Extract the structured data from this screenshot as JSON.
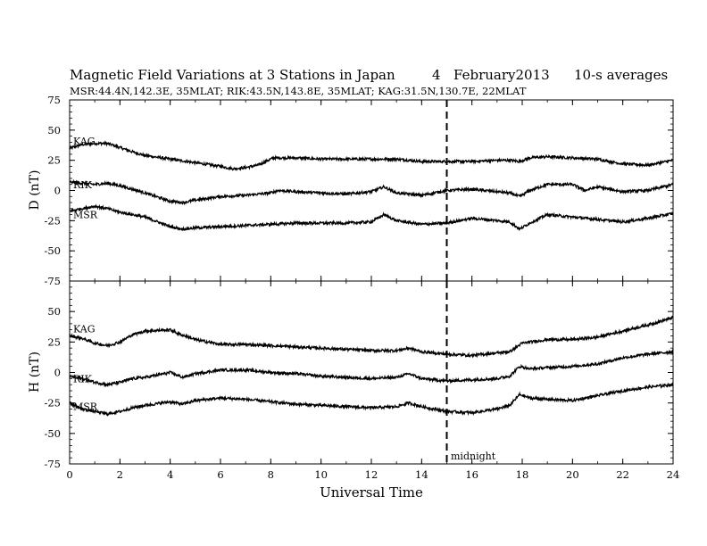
{
  "title": "Magnetic Field Variations at 3 Stations in Japan",
  "date_day": "4",
  "date_month_year": "February2013",
  "averaging": "10-s averages",
  "stations_line": "MSR:44.4N,142.3E, 35MLAT;  RIK:43.5N,143.8E, 35MLAT;  KAG:31.5N,130.7E, 22MLAT",
  "xlabel": "Universal Time",
  "annotation": "midnight",
  "chart_data": [
    {
      "type": "line",
      "panel": "D",
      "ylabel": "D (nT)",
      "ylim": [
        -75,
        75
      ],
      "yticks": [
        75,
        50,
        25,
        0,
        -25,
        -50,
        -75
      ],
      "xlim": [
        0,
        24
      ],
      "xticks": [
        0,
        2,
        4,
        6,
        8,
        10,
        12,
        14,
        16,
        18,
        20,
        22,
        24
      ],
      "vline": {
        "x": 15,
        "style": "dashed"
      },
      "series": [
        {
          "name": "KAG",
          "x": [
            0,
            0.5,
            1,
            1.5,
            1.8,
            2.5,
            3,
            4,
            5,
            6,
            6.5,
            7,
            7.5,
            7.9,
            8.1,
            9,
            10,
            11,
            12,
            12.5,
            13,
            14,
            15,
            16,
            17,
            17.5,
            17.9,
            18.3,
            19,
            20,
            21,
            22,
            23,
            24
          ],
          "y": [
            35,
            38,
            39,
            39,
            37,
            32,
            29,
            26,
            23,
            20,
            18,
            19,
            21,
            25,
            27,
            27,
            26,
            26,
            26,
            26,
            26,
            24,
            24,
            24,
            25,
            25,
            24,
            27,
            28,
            27,
            26,
            22,
            21,
            25
          ]
        },
        {
          "name": "RIK",
          "x": [
            0,
            0.5,
            1,
            1.5,
            2,
            2.5,
            3,
            4,
            4.5,
            5,
            6,
            7,
            8,
            8.3,
            9,
            10,
            11,
            12,
            12.5,
            13,
            14,
            15,
            16,
            17,
            17.5,
            17.9,
            18.3,
            19,
            20,
            20.5,
            21,
            22,
            23,
            24
          ],
          "y": [
            7,
            6,
            5,
            6,
            4,
            1,
            -2,
            -9,
            -10,
            -8,
            -5,
            -4,
            -2,
            0,
            -1,
            -2,
            -3,
            -1,
            3,
            -2,
            -4,
            0,
            1,
            -1,
            -2,
            -5,
            0,
            5,
            5,
            0,
            3,
            -1,
            0,
            5
          ]
        },
        {
          "name": "MSR",
          "x": [
            0,
            0.5,
            1,
            1.5,
            2,
            2.5,
            3,
            4,
            4.5,
            5,
            6,
            7,
            8,
            9,
            10,
            11,
            12,
            12.5,
            13,
            14,
            15,
            16,
            17,
            17.5,
            17.9,
            18.3,
            19,
            20,
            21,
            22,
            23,
            24
          ],
          "y": [
            -17,
            -15,
            -13,
            -15,
            -18,
            -20,
            -22,
            -30,
            -32,
            -31,
            -30,
            -29,
            -28,
            -27,
            -27,
            -27,
            -26,
            -20,
            -25,
            -28,
            -27,
            -23,
            -25,
            -26,
            -32,
            -27,
            -20,
            -22,
            -24,
            -26,
            -23,
            -19
          ]
        }
      ]
    },
    {
      "type": "line",
      "panel": "H",
      "ylabel": "H (nT)",
      "ylim": [
        -75,
        75
      ],
      "yticks": [
        50,
        25,
        0,
        -25,
        -50,
        -75
      ],
      "xlim": [
        0,
        24
      ],
      "xticks": [
        0,
        2,
        4,
        6,
        8,
        10,
        12,
        14,
        16,
        18,
        20,
        22,
        24
      ],
      "vline": {
        "x": 15,
        "style": "dashed"
      },
      "series": [
        {
          "name": "KAG",
          "x": [
            0,
            0.5,
            1,
            1.5,
            2,
            2.5,
            3,
            4,
            4.3,
            5,
            6,
            7,
            8,
            9,
            10,
            11,
            12,
            13,
            13.5,
            14,
            15,
            16,
            17,
            17.5,
            18,
            19,
            20,
            21,
            22,
            23,
            24
          ],
          "y": [
            30,
            28,
            24,
            22,
            25,
            31,
            34,
            35,
            32,
            27,
            23,
            23,
            22,
            21,
            20,
            19,
            18,
            18,
            20,
            17,
            15,
            14,
            16,
            17,
            24,
            27,
            27,
            29,
            34,
            39,
            45
          ]
        },
        {
          "name": "RIK",
          "x": [
            0,
            0.5,
            1,
            1.5,
            2,
            2.5,
            3,
            4,
            4.5,
            5,
            6,
            7,
            8,
            9,
            10,
            11,
            12,
            13,
            13.5,
            14,
            15,
            16,
            17,
            17.5,
            17.9,
            18.3,
            19,
            20,
            21,
            22,
            23,
            24
          ],
          "y": [
            -3,
            -5,
            -8,
            -10,
            -8,
            -5,
            -4,
            0,
            -4,
            -1,
            2,
            2,
            0,
            -1,
            -3,
            -4,
            -5,
            -4,
            -1,
            -5,
            -7,
            -6,
            -5,
            -3,
            5,
            3,
            4,
            5,
            7,
            12,
            15,
            17
          ]
        },
        {
          "name": "MSR",
          "x": [
            0,
            0.5,
            1,
            1.5,
            2,
            2.5,
            3,
            4,
            4.5,
            5,
            6,
            7,
            8,
            9,
            10,
            11,
            12,
            13,
            13.5,
            14,
            15,
            16,
            17,
            17.5,
            17.9,
            18.3,
            19,
            20,
            21,
            22,
            23,
            24
          ],
          "y": [
            -25,
            -30,
            -32,
            -34,
            -32,
            -29,
            -27,
            -24,
            -26,
            -23,
            -21,
            -22,
            -24,
            -26,
            -27,
            -28,
            -29,
            -28,
            -25,
            -28,
            -32,
            -33,
            -30,
            -27,
            -18,
            -21,
            -22,
            -23,
            -19,
            -15,
            -12,
            -10
          ]
        }
      ]
    }
  ]
}
